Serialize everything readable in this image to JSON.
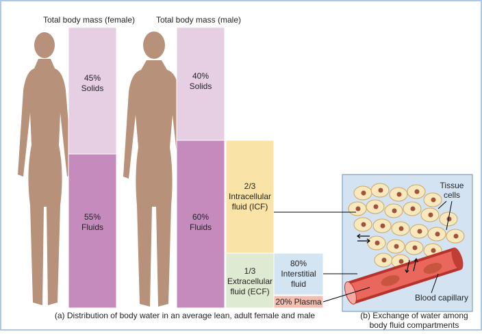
{
  "panel_a": {
    "female": {
      "title": "Total body mass (female)",
      "solids": {
        "percent": "45%",
        "label": "Solids"
      },
      "fluids": {
        "percent": "55%",
        "label": "Fluids"
      }
    },
    "male": {
      "title": "Total body mass (male)",
      "solids": {
        "percent": "40%",
        "label": "Solids"
      },
      "fluids": {
        "percent": "60%",
        "label": "Fluids"
      }
    },
    "icf": {
      "fraction": "2/3",
      "lines": [
        "Intracellular",
        "fluid (ICF)"
      ]
    },
    "ecf": {
      "fraction": "1/3",
      "lines": [
        "Extracellular",
        "fluid (ECF)"
      ]
    },
    "interstitial": {
      "percent": "80%",
      "lines": [
        "Interstitial",
        "fluid"
      ]
    },
    "plasma": "20% Plasma",
    "caption": "(a) Distribution of body water in an average lean, adult female and male"
  },
  "panel_b": {
    "tissue_cells": [
      "Tissue",
      "cells"
    ],
    "blood_capillary": "Blood capillary",
    "caption": [
      "(b) Exchange of water among",
      "body fluid compartments"
    ]
  }
}
